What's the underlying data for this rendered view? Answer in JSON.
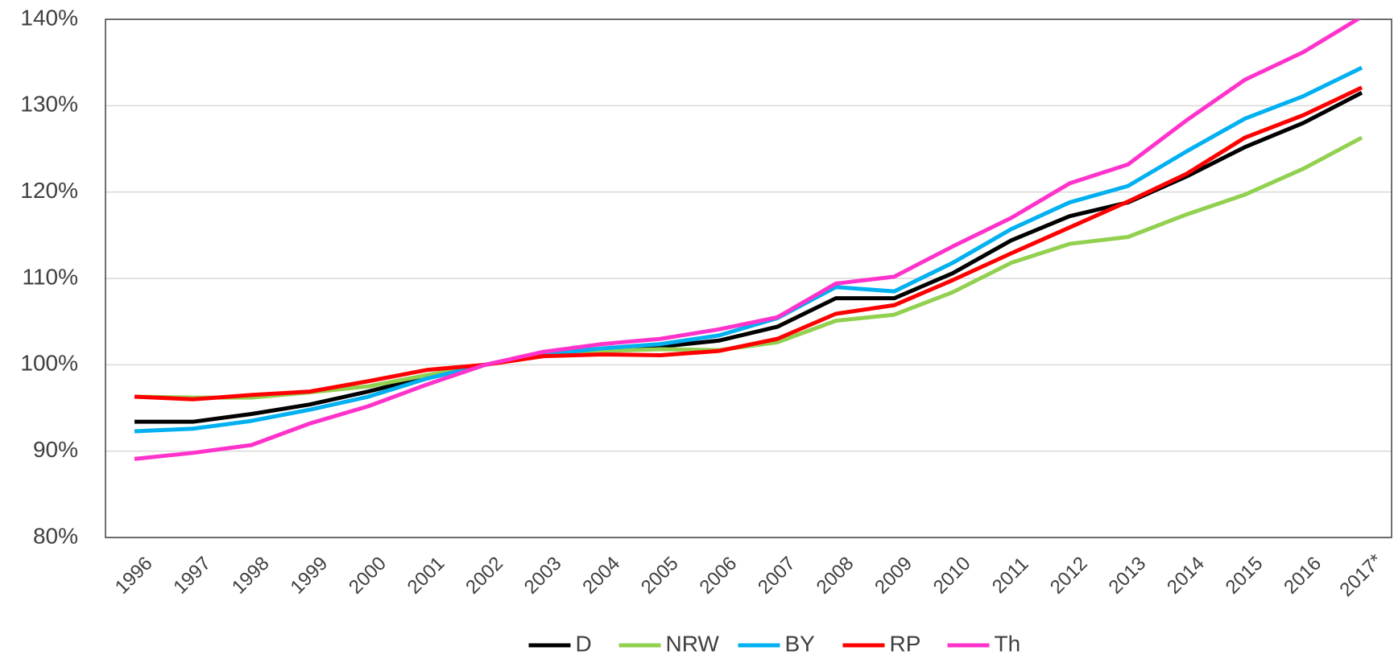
{
  "chart_data": {
    "type": "line",
    "categories": [
      "1996",
      "1997",
      "1998",
      "1999",
      "2000",
      "2001",
      "2002",
      "2003",
      "2004",
      "2005",
      "2006",
      "2007",
      "2008",
      "2009",
      "2010",
      "2011",
      "2012",
      "2013",
      "2014",
      "2015",
      "2016",
      "2017*"
    ],
    "series": [
      {
        "name": "D",
        "color": "#000000",
        "values": [
          93.4,
          93.4,
          94.3,
          95.4,
          96.9,
          98.6,
          100,
          101.2,
          101.7,
          102.1,
          102.8,
          104.4,
          107.7,
          107.7,
          110.6,
          114.4,
          117.2,
          118.8,
          121.8,
          125.2,
          128.0,
          131.5
        ]
      },
      {
        "name": "NRW",
        "color": "#92d050",
        "values": [
          96.3,
          96.2,
          96.2,
          96.8,
          97.5,
          98.8,
          100,
          101.2,
          101.6,
          101.8,
          101.7,
          102.6,
          105.1,
          105.8,
          108.4,
          111.8,
          114.0,
          114.8,
          117.4,
          119.7,
          122.7,
          126.3
        ]
      },
      {
        "name": "BY",
        "color": "#00b0f0",
        "values": [
          92.3,
          92.6,
          93.5,
          94.8,
          96.3,
          98.4,
          100,
          101.2,
          101.9,
          102.4,
          103.4,
          105.4,
          109.0,
          108.5,
          111.8,
          115.7,
          118.8,
          120.7,
          124.7,
          128.5,
          131.1,
          134.4
        ]
      },
      {
        "name": "RP",
        "color": "#ff0000",
        "values": [
          96.3,
          96.0,
          96.5,
          96.9,
          98.1,
          99.4,
          100,
          101.0,
          101.2,
          101.1,
          101.6,
          103.0,
          105.9,
          106.9,
          109.8,
          112.9,
          115.9,
          118.9,
          122.1,
          126.3,
          128.9,
          132.1
        ]
      },
      {
        "name": "Th",
        "color": "#ff33cc",
        "values": [
          89.1,
          89.8,
          90.7,
          93.2,
          95.2,
          97.7,
          100,
          101.5,
          102.4,
          103.0,
          104.1,
          105.5,
          109.4,
          110.2,
          113.7,
          117.0,
          121.0,
          123.2,
          128.3,
          133.0,
          136.2,
          140.3
        ]
      }
    ],
    "ylim": [
      80,
      140
    ],
    "yticks": [
      {
        "value": 80,
        "label": "80%"
      },
      {
        "value": 90,
        "label": "90%"
      },
      {
        "value": 100,
        "label": "100%"
      },
      {
        "value": 110,
        "label": "110%"
      },
      {
        "value": 120,
        "label": "120%"
      },
      {
        "value": 130,
        "label": "130%"
      },
      {
        "value": 140,
        "label": "140%"
      }
    ],
    "grid": true,
    "legend": "bottom"
  }
}
